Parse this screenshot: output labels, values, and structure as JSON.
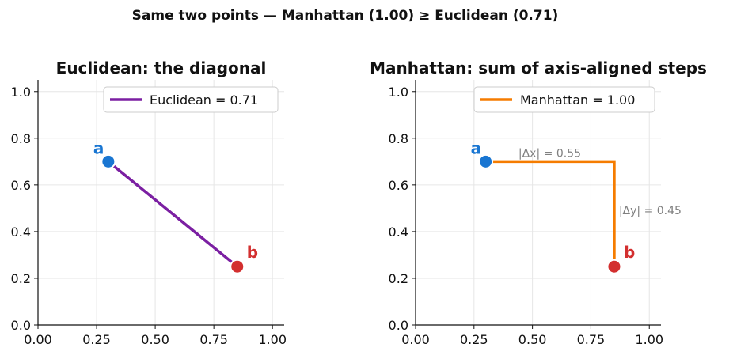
{
  "figure_title": "Same two points — Manhattan (1.00) ≥ Euclidean (0.71)",
  "colors": {
    "euclidean": "#7b1fa2",
    "manhattan": "#f57c00",
    "point_a": "#1976d2",
    "point_b": "#d32f2f",
    "annotation": "#808080",
    "grid": "#e6e6e6"
  },
  "chart_data": [
    {
      "type": "line",
      "title": "Euclidean: the diagonal",
      "xlabel": "",
      "ylabel": "",
      "xlim": [
        0,
        1.05
      ],
      "ylim": [
        0,
        1.05
      ],
      "xticks": [
        "0.00",
        "0.25",
        "0.50",
        "0.75",
        "1.00"
      ],
      "yticks": [
        "0.0",
        "0.2",
        "0.4",
        "0.6",
        "0.8",
        "1.0"
      ],
      "grid": true,
      "legend_position": "top-right",
      "series": [
        {
          "name": "Euclidean = 0.71",
          "x": [
            0.3,
            0.85
          ],
          "y": [
            0.7,
            0.25
          ]
        }
      ],
      "points": [
        {
          "label": "a",
          "x": 0.3,
          "y": 0.7
        },
        {
          "label": "b",
          "x": 0.85,
          "y": 0.25
        }
      ],
      "annotations": []
    },
    {
      "type": "line",
      "title": "Manhattan: sum of axis-aligned steps",
      "xlabel": "",
      "ylabel": "",
      "xlim": [
        0,
        1.05
      ],
      "ylim": [
        0,
        1.05
      ],
      "xticks": [
        "0.00",
        "0.25",
        "0.50",
        "0.75",
        "1.00"
      ],
      "yticks": [
        "0.0",
        "0.2",
        "0.4",
        "0.6",
        "0.8",
        "1.0"
      ],
      "grid": true,
      "legend_position": "top-right",
      "series": [
        {
          "name": "Manhattan = 1.00",
          "x": [
            0.3,
            0.85,
            0.85
          ],
          "y": [
            0.7,
            0.7,
            0.25
          ]
        }
      ],
      "points": [
        {
          "label": "a",
          "x": 0.3,
          "y": 0.7
        },
        {
          "label": "b",
          "x": 0.85,
          "y": 0.25
        }
      ],
      "annotations": [
        {
          "text": "|Δx| = 0.55",
          "x": 0.44,
          "y": 0.72
        },
        {
          "text": "|Δy| = 0.45",
          "x": 0.87,
          "y": 0.475
        }
      ]
    }
  ]
}
